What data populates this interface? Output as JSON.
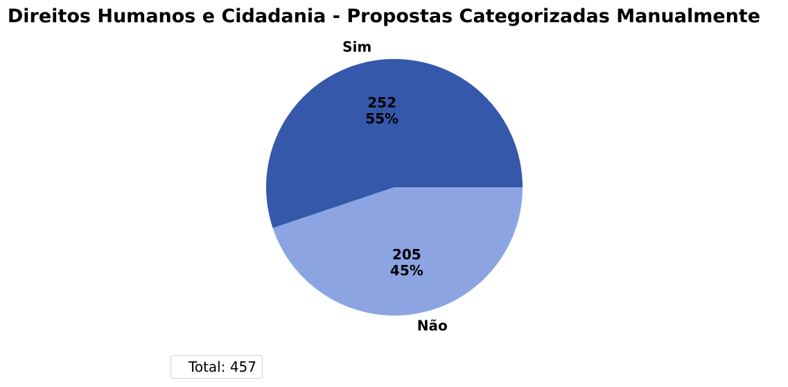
{
  "chart_data": {
    "type": "pie",
    "title": "Direitos Humanos e Cidadania - Propostas Categorizadas Manualmente",
    "slices": [
      {
        "label": "Sim",
        "value": 252,
        "percent_label": "55%",
        "color": "#3558ab"
      },
      {
        "label": "Não",
        "value": 205,
        "percent_label": "45%",
        "color": "#8ca4e2"
      }
    ],
    "legend": {
      "text": "Total: 457",
      "placement": "lower-left"
    }
  }
}
